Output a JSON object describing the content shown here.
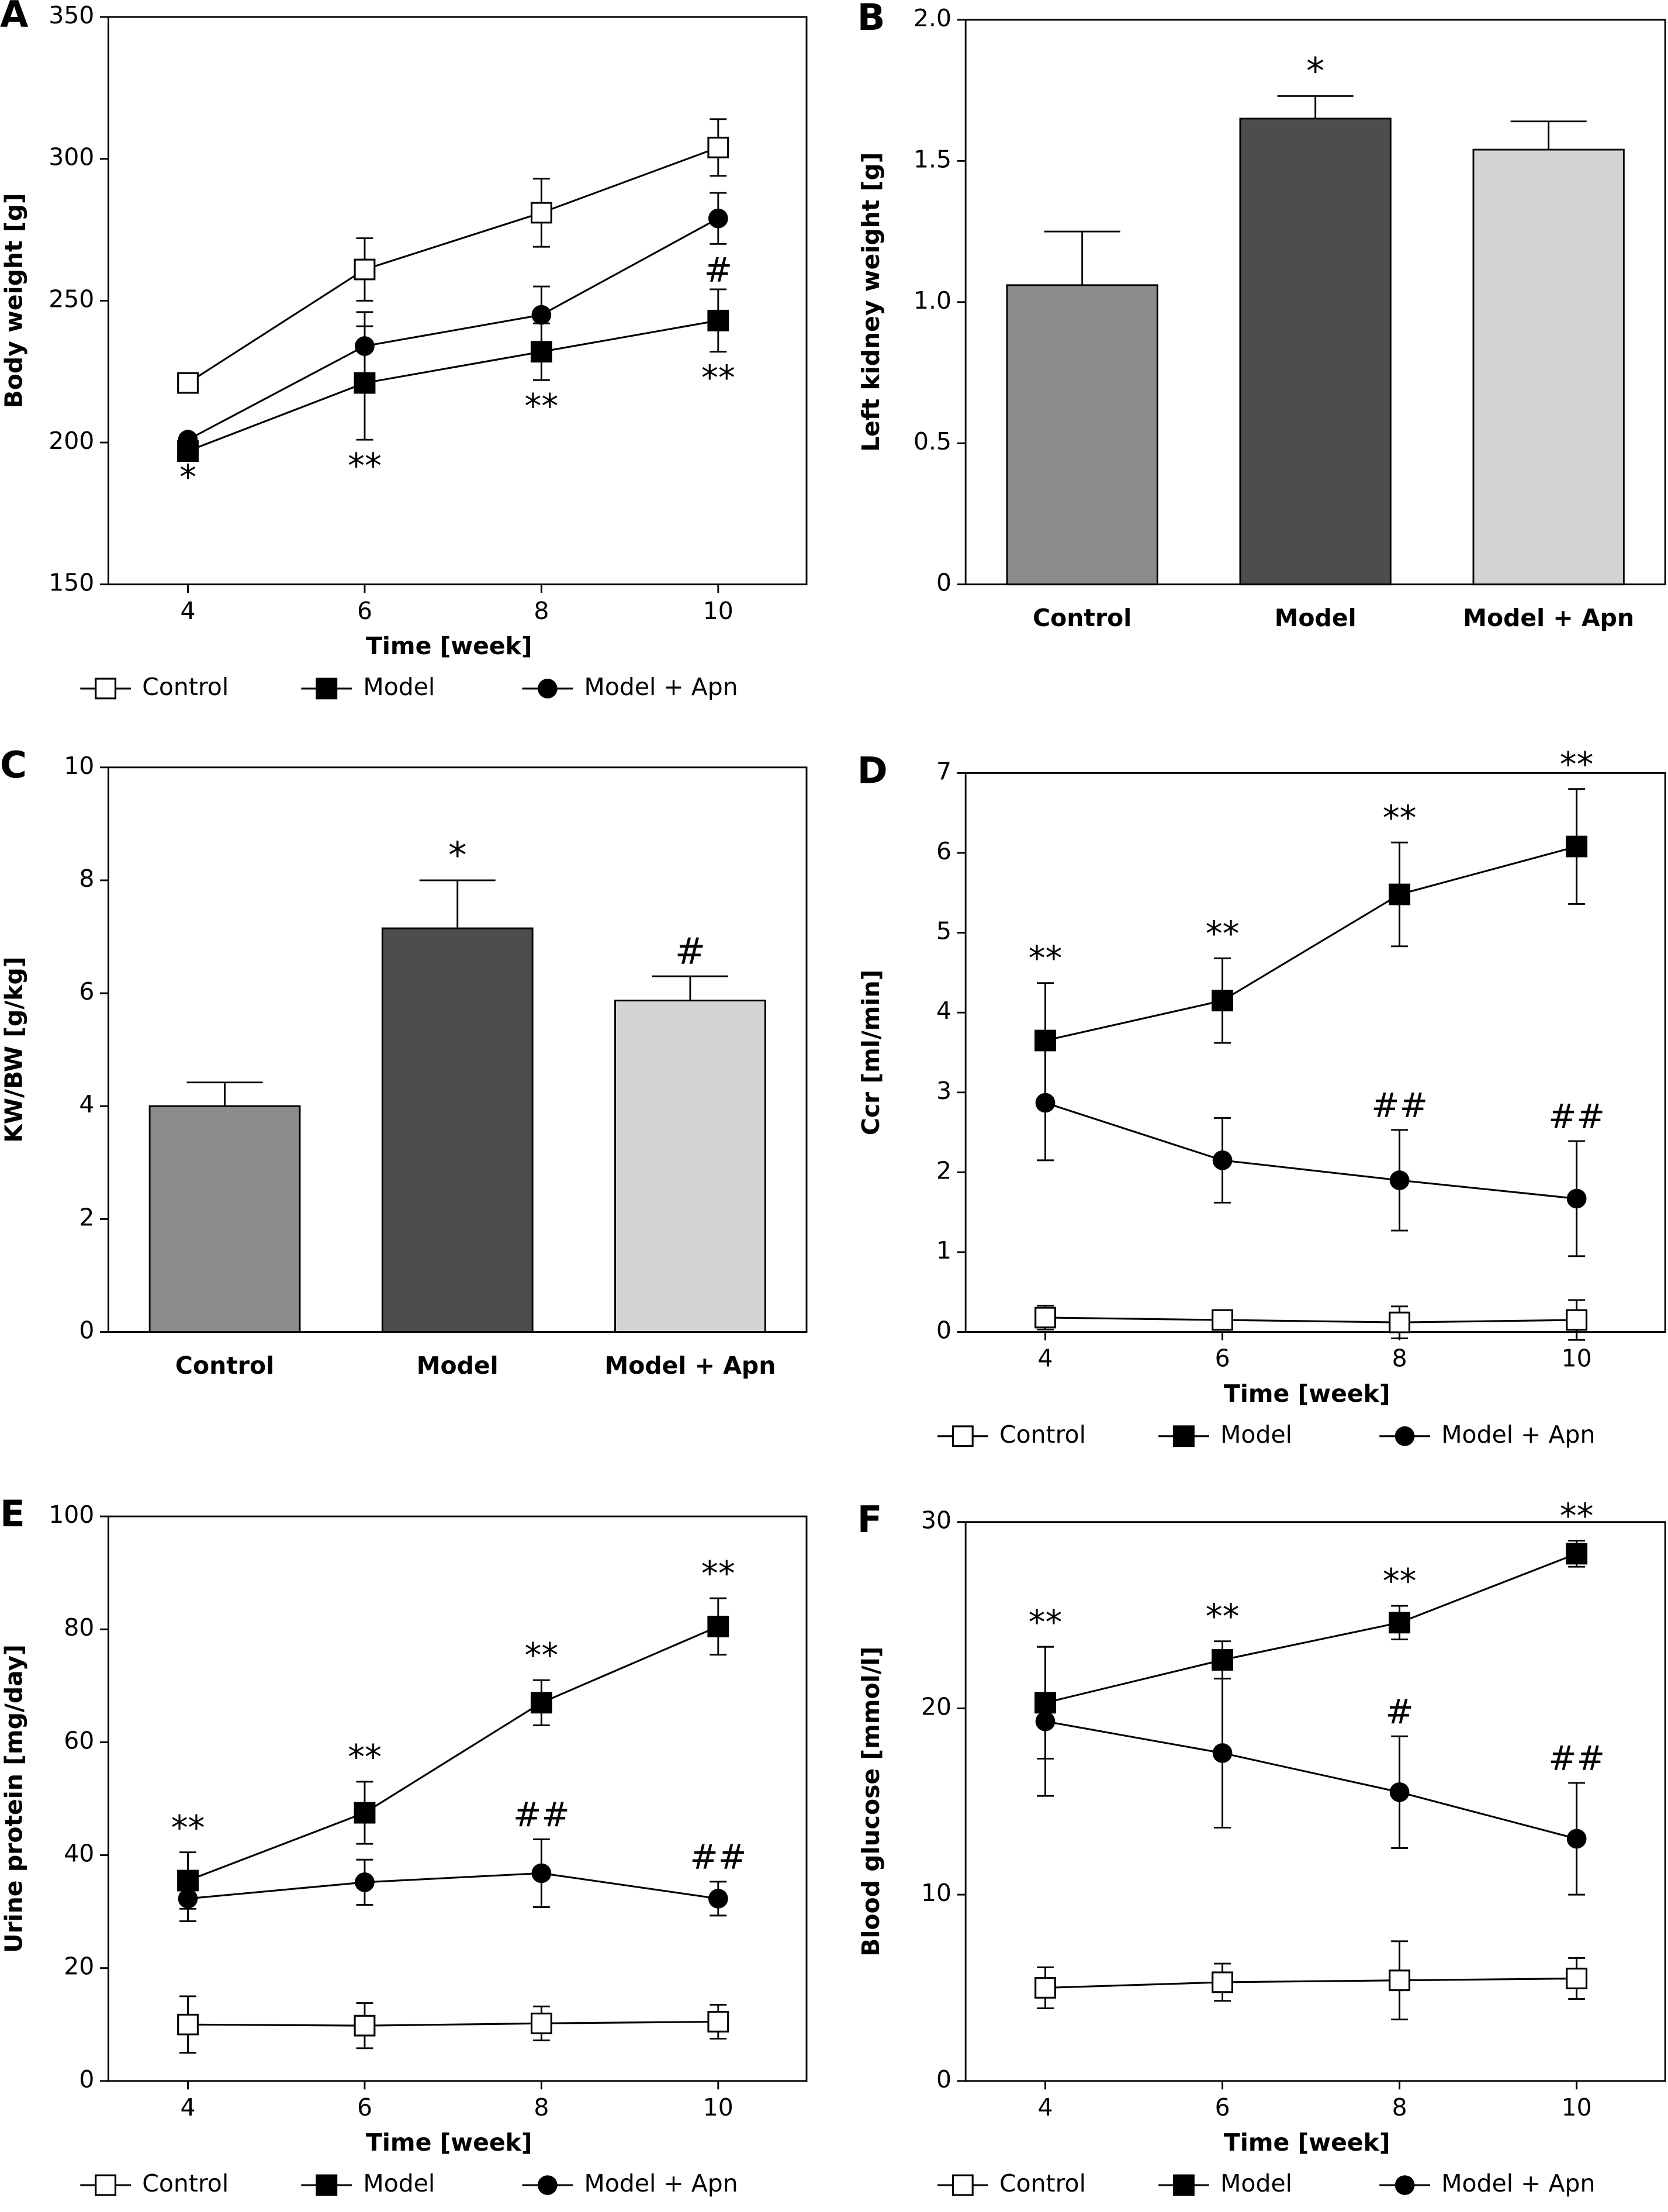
{
  "chart_data": [
    {
      "type": "line",
      "label": "A",
      "xlabel": "Time [week]",
      "ylabel": "Body weight [g]",
      "x": [
        4,
        6,
        8,
        10
      ],
      "xlim": [
        3.1,
        11
      ],
      "xticks": [
        4,
        6,
        8,
        10
      ],
      "ylim": [
        150,
        350
      ],
      "yticks": [
        150,
        200,
        250,
        300,
        350
      ],
      "series": [
        {
          "name": "Control",
          "color": "#000000",
          "marker": "open-square",
          "values": [
            221,
            261,
            281,
            304
          ],
          "errors": [
            null,
            11,
            12,
            10
          ],
          "annotations": [
            null,
            null,
            null,
            null
          ]
        },
        {
          "name": "Model",
          "color": "#000000",
          "marker": "square",
          "values": [
            197,
            221,
            232,
            243
          ],
          "errors": [
            null,
            20,
            10,
            11
          ],
          "annotations": [
            "*",
            "**",
            "**",
            "**"
          ]
        },
        {
          "name": "Model + Apn",
          "color": "#000000",
          "marker": "circle",
          "values": [
            201,
            234,
            245,
            279
          ],
          "errors": [
            null,
            12,
            10,
            9
          ],
          "annotations": [
            null,
            null,
            null,
            "#"
          ]
        }
      ]
    },
    {
      "type": "bar",
      "label": "B",
      "ylabel": "Left kidney weight [g]",
      "categories": [
        "Control",
        "Model",
        "Model + Apn"
      ],
      "values": [
        1.06,
        1.65,
        1.54
      ],
      "errors": [
        0.19,
        0.08,
        0.1
      ],
      "colors": [
        "#8c8c8c",
        "#4d4d4d",
        "#d4d4d4"
      ],
      "annotations": [
        null,
        "*",
        null
      ],
      "ylim": [
        0,
        2
      ],
      "yticks": [
        0,
        0.5,
        {
          "value": 1,
          "label": "1.0"
        },
        1.5,
        {
          "value": 2,
          "label": "2.0"
        }
      ]
    },
    {
      "type": "bar",
      "label": "C",
      "ylabel": "KW/BW [g/kg]",
      "categories": [
        "Control",
        "Model",
        "Model + Apn"
      ],
      "values": [
        4.0,
        7.15,
        5.87
      ],
      "errors": [
        0.42,
        0.85,
        0.43
      ],
      "colors": [
        "#8c8c8c",
        "#4d4d4d",
        "#d4d4d4"
      ],
      "annotations": [
        null,
        "*",
        "#"
      ],
      "ylim": [
        0,
        10
      ],
      "yticks": [
        0,
        2,
        4,
        6,
        8,
        10
      ]
    },
    {
      "type": "line",
      "label": "D",
      "xlabel": "Time [week]",
      "ylabel": "Ccr [ml/min]",
      "x": [
        4,
        6,
        8,
        10
      ],
      "xlim": [
        3.1,
        11
      ],
      "xticks": [
        4,
        6,
        8,
        10
      ],
      "ylim": [
        0,
        7
      ],
      "yticks": [
        0,
        1,
        2,
        3,
        4,
        5,
        6,
        7
      ],
      "series": [
        {
          "name": "Control",
          "color": "#000000",
          "marker": "open-square",
          "values": [
            0.18,
            0.15,
            0.12,
            0.15
          ],
          "errors": [
            0.15,
            0.1,
            0.2,
            0.25
          ],
          "annotations": [
            null,
            null,
            null,
            null
          ]
        },
        {
          "name": "Model",
          "color": "#000000",
          "marker": "square",
          "values": [
            3.65,
            4.15,
            5.48,
            6.08
          ],
          "errors": [
            0.72,
            0.53,
            0.65,
            0.72
          ],
          "annotations": [
            "**",
            "**",
            "**",
            "**"
          ]
        },
        {
          "name": "Model + Apn",
          "color": "#000000",
          "marker": "circle",
          "values": [
            2.87,
            2.15,
            1.9,
            1.67
          ],
          "errors": [
            0.72,
            0.53,
            0.63,
            0.72
          ],
          "annotations": [
            null,
            null,
            "##",
            "##"
          ]
        }
      ]
    },
    {
      "type": "line",
      "label": "E",
      "xlabel": "Time [week]",
      "ylabel": "Urine protein [mg/day]",
      "x": [
        4,
        6,
        8,
        10
      ],
      "xlim": [
        3.1,
        11
      ],
      "xticks": [
        4,
        6,
        8,
        10
      ],
      "ylim": [
        0,
        100
      ],
      "yticks": [
        0,
        20,
        40,
        60,
        80,
        100
      ],
      "series": [
        {
          "name": "Control",
          "color": "#000000",
          "marker": "open-square",
          "values": [
            10,
            9.8,
            10.2,
            10.5
          ],
          "errors": [
            5,
            4,
            3,
            3
          ],
          "annotations": [
            null,
            null,
            null,
            null
          ]
        },
        {
          "name": "Model",
          "color": "#000000",
          "marker": "square",
          "values": [
            35.5,
            47.5,
            67,
            80.5
          ],
          "errors": [
            5,
            5.5,
            4,
            5
          ],
          "annotations": [
            "**",
            "**",
            "**",
            "**"
          ]
        },
        {
          "name": "Model + Apn",
          "color": "#000000",
          "marker": "circle",
          "values": [
            32.3,
            35.2,
            36.8,
            32.3
          ],
          "errors": [
            4,
            4,
            6,
            3
          ],
          "annotations": [
            null,
            null,
            "##",
            "##"
          ]
        }
      ]
    },
    {
      "type": "line",
      "label": "F",
      "xlabel": "Time [week]",
      "ylabel": "Blood glucose [mmol/l]",
      "x": [
        4,
        6,
        8,
        10
      ],
      "xlim": [
        3.1,
        11
      ],
      "xticks": [
        4,
        6,
        8,
        10
      ],
      "ylim": [
        0,
        30
      ],
      "yticks": [
        0,
        10,
        20,
        30
      ],
      "series": [
        {
          "name": "Control",
          "color": "#000000",
          "marker": "open-square",
          "values": [
            5.0,
            5.3,
            5.4,
            5.5
          ],
          "errors": [
            1.1,
            1.0,
            2.1,
            1.1
          ],
          "annotations": [
            null,
            null,
            null,
            null
          ]
        },
        {
          "name": "Model",
          "color": "#000000",
          "marker": "square",
          "values": [
            20.3,
            22.6,
            24.6,
            28.3
          ],
          "errors": [
            3.0,
            1.0,
            0.9,
            0.7
          ],
          "annotations": [
            "**",
            "**",
            "**",
            "**"
          ]
        },
        {
          "name": "Model + Apn",
          "color": "#000000",
          "marker": "circle",
          "values": [
            19.3,
            17.6,
            15.5,
            13.0
          ],
          "errors": [
            4,
            4,
            3,
            3
          ],
          "annotations": [
            null,
            null,
            "#",
            "##"
          ]
        }
      ]
    }
  ]
}
